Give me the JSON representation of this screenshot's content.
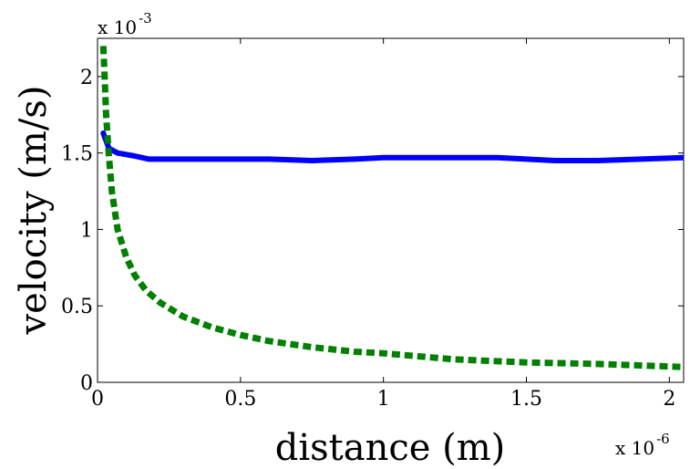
{
  "chart_data": {
    "type": "line",
    "title": "",
    "xlabel": "distance (m)",
    "ylabel": "velocity (m/s)",
    "x_multiplier": {
      "base": "x 10",
      "exponent": "-6"
    },
    "y_multiplier": {
      "base": "x 10",
      "exponent": "-3"
    },
    "xlim": [
      0,
      2.05
    ],
    "ylim": [
      0,
      2.25
    ],
    "xticks": [
      0,
      0.5,
      1,
      1.5,
      2
    ],
    "xtick_labels": [
      "0",
      "0.5",
      "1",
      "1.5",
      "2"
    ],
    "yticks": [
      0,
      0.5,
      1,
      1.5,
      2
    ],
    "ytick_labels": [
      "0",
      "0.5",
      "1",
      "1.5",
      "2"
    ],
    "grid": false,
    "series": [
      {
        "name": "blue-solid",
        "color": "#0000ff",
        "style": "solid",
        "x": [
          0.02,
          0.04,
          0.07,
          0.1,
          0.13,
          0.18,
          0.25,
          0.35,
          0.5,
          0.6,
          0.75,
          0.9,
          1.0,
          1.1,
          1.25,
          1.4,
          1.5,
          1.6,
          1.75,
          1.9,
          2.05
        ],
        "values": [
          1.63,
          1.53,
          1.5,
          1.49,
          1.48,
          1.46,
          1.46,
          1.46,
          1.46,
          1.46,
          1.45,
          1.46,
          1.47,
          1.47,
          1.47,
          1.47,
          1.46,
          1.45,
          1.45,
          1.46,
          1.47
        ]
      },
      {
        "name": "green-dashed",
        "color": "#008000",
        "style": "dashed",
        "x": [
          0.02,
          0.025,
          0.03,
          0.04,
          0.05,
          0.07,
          0.1,
          0.13,
          0.17,
          0.22,
          0.3,
          0.4,
          0.5,
          0.6,
          0.75,
          0.9,
          1.0,
          1.25,
          1.5,
          1.75,
          2.05
        ],
        "values": [
          2.2,
          2.0,
          1.75,
          1.48,
          1.25,
          1.0,
          0.82,
          0.7,
          0.6,
          0.52,
          0.43,
          0.36,
          0.31,
          0.27,
          0.23,
          0.2,
          0.19,
          0.15,
          0.13,
          0.12,
          0.1
        ]
      }
    ]
  }
}
